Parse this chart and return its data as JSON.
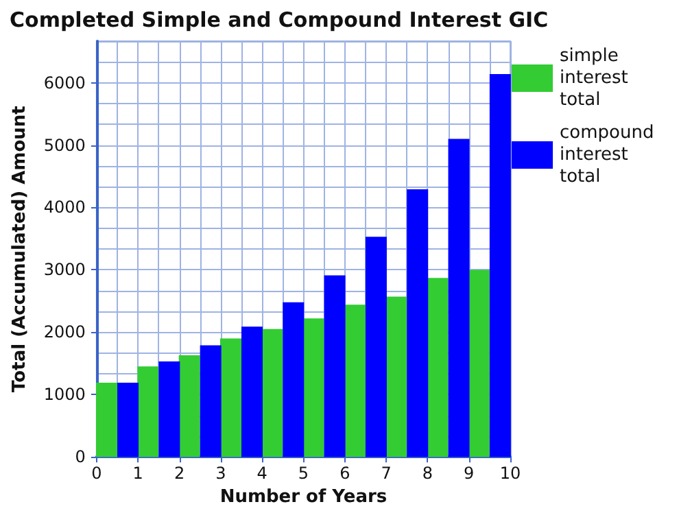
{
  "chart_data": {
    "type": "bar",
    "title": "Completed Simple and Compound Interest GIC",
    "xlabel": "Number of Years",
    "ylabel": "Total (Accumulated) Amount",
    "x": [
      0.5,
      1.5,
      2.5,
      3.5,
      4.5,
      5.5,
      6.5,
      7.5,
      8.5,
      9.5
    ],
    "series": [
      {
        "name": "simple interest total",
        "color": "#33cc33",
        "values": [
          1190,
          1450,
          1630,
          1900,
          2050,
          2220,
          2440,
          2570,
          2870,
          3000
        ]
      },
      {
        "name": "compound interest total",
        "color": "#0000ff",
        "values": [
          1190,
          1530,
          1790,
          2090,
          2480,
          2910,
          3530,
          4290,
          5100,
          6140
        ]
      }
    ],
    "xlim": [
      0,
      10
    ],
    "xticks": [
      0,
      1,
      2,
      3,
      4,
      5,
      6,
      7,
      8,
      9,
      10
    ],
    "ylim": [
      0,
      6666.67
    ],
    "yticks": [
      0,
      1000,
      2000,
      3000,
      4000,
      5000,
      6000
    ],
    "grid": true,
    "legend": "top right"
  }
}
